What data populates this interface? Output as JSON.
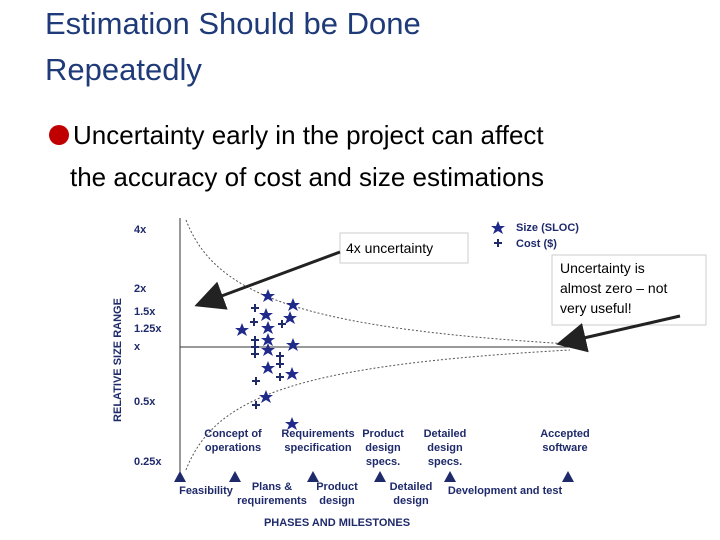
{
  "title": [
    "Estimation Should be Done",
    "Repeatedly"
  ],
  "bullet": [
    "Uncertainty early in the project can affect",
    "the accuracy of cost and size estimations"
  ],
  "figure": {
    "y_axis_label": "RELATIVE SIZE RANGE",
    "y_ticks": [
      "4x",
      "2x",
      "1.5x",
      "1.25x",
      "x",
      "0.5x",
      "0.25x"
    ],
    "legend": [
      "Size (SLOC)",
      "Cost ($)"
    ],
    "phases": [
      [
        "Concept of",
        "operations"
      ],
      [
        "Requirements",
        "specification"
      ],
      [
        "Product",
        "design",
        "specs."
      ],
      [
        "Detailed",
        "design",
        "specs."
      ],
      [
        "Accepted",
        "software"
      ]
    ],
    "milestones": [
      [
        "Feasibility"
      ],
      [
        "Plans &",
        "requirements"
      ],
      [
        "Product",
        "design"
      ],
      [
        "Detailed",
        "design"
      ],
      [
        "Development and test"
      ]
    ],
    "x_axis_label": "PHASES AND MILESTONES",
    "callouts": [
      [
        "4x uncertainty"
      ],
      [
        "Uncertainty is",
        "almost zero – not",
        "very useful!"
      ]
    ]
  }
}
